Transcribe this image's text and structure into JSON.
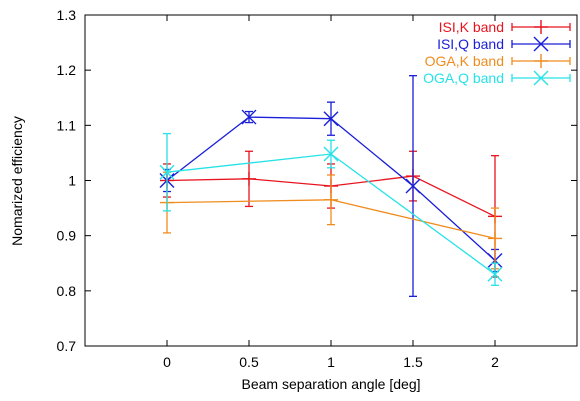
{
  "chart_data": {
    "type": "line",
    "xlabel": "Beam separation angle [deg]",
    "ylabel": "Nomarized efficiency",
    "xlim": [
      -0.5,
      2.5
    ],
    "ylim": [
      0.7,
      1.3
    ],
    "xticks": [
      "0",
      "0.5",
      "1",
      "1.5",
      "2"
    ],
    "yticks": [
      "0.7",
      "0.8",
      "0.9",
      "1",
      "1.1",
      "1.2",
      "1.3"
    ],
    "grid": false,
    "legend_position": "top-right",
    "series": [
      {
        "name": "ISI,K band",
        "color": "#e8141f",
        "marker": "plus",
        "points": [
          {
            "x": 0,
            "y": 1.0,
            "err": 0.03
          },
          {
            "x": 0.5,
            "y": 1.003,
            "err": 0.05
          },
          {
            "x": 1,
            "y": 0.99,
            "err": 0.04
          },
          {
            "x": 1.5,
            "y": 1.008,
            "err": 0.045
          },
          {
            "x": 2,
            "y": 0.935,
            "err": 0.11
          }
        ]
      },
      {
        "name": "ISI,Q band",
        "color": "#1a1fd8",
        "marker": "x",
        "points": [
          {
            "x": 0,
            "y": 1.0,
            "err": 0.02
          },
          {
            "x": 0.5,
            "y": 1.115,
            "err": 0.01
          },
          {
            "x": 1,
            "y": 1.112,
            "err": 0.03
          },
          {
            "x": 1.5,
            "y": 0.99,
            "err": 0.2
          },
          {
            "x": 2,
            "y": 0.855,
            "err": 0.02
          }
        ]
      },
      {
        "name": "OGA,K band",
        "color": "#f08c1e",
        "marker": "plus",
        "points": [
          {
            "x": 0,
            "y": 0.96,
            "err": 0.055
          },
          {
            "x": 1,
            "y": 0.965,
            "err": 0.045
          },
          {
            "x": 2,
            "y": 0.895,
            "err": 0.055
          }
        ]
      },
      {
        "name": "OGA,Q band",
        "color": "#27e2e8",
        "marker": "x",
        "points": [
          {
            "x": 0,
            "y": 1.015,
            "err": 0.07
          },
          {
            "x": 1,
            "y": 1.048,
            "err": 0.025
          },
          {
            "x": 2,
            "y": 0.83,
            "err": 0.02
          }
        ]
      }
    ]
  }
}
